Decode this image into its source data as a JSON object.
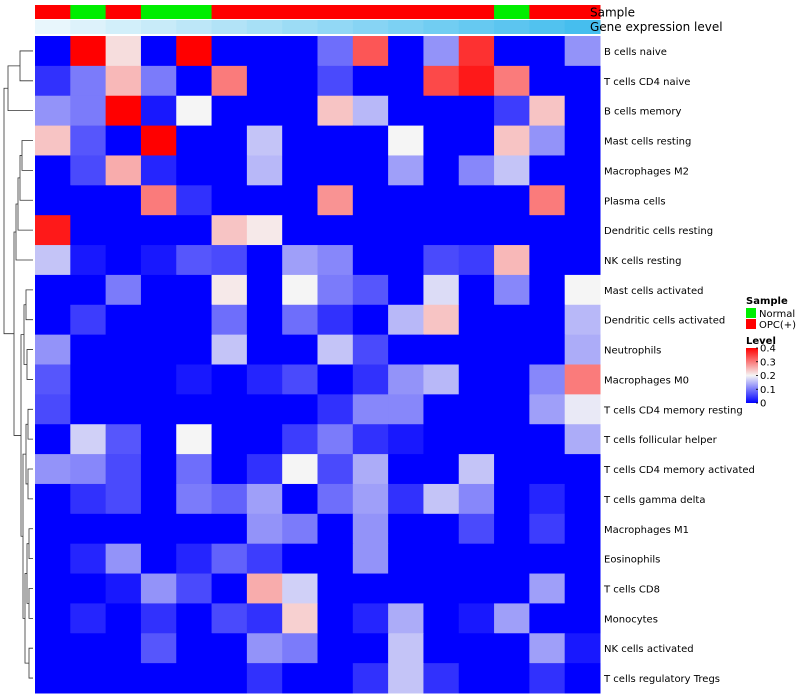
{
  "chart_data": {
    "type": "heatmap",
    "annotation_tracks": [
      {
        "title": "Sample",
        "values": [
          "OPC(+)",
          "Normal",
          "OPC(+)",
          "Normal",
          "Normal",
          "OPC(+)",
          "OPC(+)",
          "OPC(+)",
          "OPC(+)",
          "OPC(+)",
          "OPC(+)",
          "OPC(+)",
          "OPC(+)",
          "Normal",
          "OPC(+)",
          "OPC(+)"
        ]
      },
      {
        "title": "Gene expression level",
        "values": [
          0.0,
          0.067,
          0.133,
          0.2,
          0.267,
          0.333,
          0.4,
          0.467,
          0.533,
          0.6,
          0.667,
          0.733,
          0.8,
          0.867,
          0.933,
          1.0
        ]
      }
    ],
    "rows": [
      "B cells naive",
      "T cells CD4 naive",
      "B cells memory",
      "Mast cells resting",
      "Macrophages M2",
      "Plasma cells",
      "Dendritic cells resting",
      "NK cells resting",
      "Mast cells activated",
      "Dendritic cells activated",
      "Neutrophils",
      "Macrophages M0",
      "T cells CD4 memory resting",
      "T cells follicular helper",
      "T cells CD4 memory activated",
      "T cells gamma delta",
      "Macrophages M1",
      "Eosinophils",
      "T cells CD8",
      "Monocytes",
      "NK cells activated",
      "T cells regulatory  Tregs"
    ],
    "values": [
      [
        0.0,
        0.4,
        0.22,
        0.0,
        0.4,
        0.0,
        0.0,
        0.0,
        0.09,
        0.33,
        0.0,
        0.12,
        0.36,
        0.0,
        0.0,
        0.12
      ],
      [
        0.04,
        0.1,
        0.25,
        0.1,
        0.0,
        0.3,
        0.0,
        0.0,
        0.06,
        0.0,
        0.0,
        0.34,
        0.38,
        0.3,
        0.0,
        0.0
      ],
      [
        0.12,
        0.1,
        0.4,
        0.02,
        0.2,
        0.0,
        0.0,
        0.0,
        0.24,
        0.15,
        0.0,
        0.0,
        0.0,
        0.05,
        0.24,
        0.0
      ],
      [
        0.24,
        0.07,
        0.0,
        0.4,
        0.0,
        0.0,
        0.16,
        0.0,
        0.0,
        0.0,
        0.2,
        0.0,
        0.0,
        0.24,
        0.12,
        0.0
      ],
      [
        0.0,
        0.06,
        0.26,
        0.03,
        0.0,
        0.0,
        0.15,
        0.0,
        0.0,
        0.0,
        0.13,
        0.0,
        0.11,
        0.16,
        0.0,
        0.0
      ],
      [
        0.0,
        0.0,
        0.0,
        0.3,
        0.04,
        0.0,
        0.0,
        0.0,
        0.28,
        0.0,
        0.0,
        0.0,
        0.0,
        0.0,
        0.3,
        0.0
      ],
      [
        0.38,
        0.0,
        0.0,
        0.0,
        0.0,
        0.24,
        0.21,
        0.0,
        0.0,
        0.0,
        0.0,
        0.0,
        0.0,
        0.0,
        0.0,
        0.0
      ],
      [
        0.16,
        0.02,
        0.0,
        0.02,
        0.07,
        0.06,
        0.0,
        0.13,
        0.11,
        0.0,
        0.0,
        0.06,
        0.05,
        0.25,
        0.0,
        0.0
      ],
      [
        0.0,
        0.0,
        0.1,
        0.0,
        0.0,
        0.21,
        0.0,
        0.2,
        0.1,
        0.07,
        0.0,
        0.18,
        0.0,
        0.11,
        0.0,
        0.2
      ],
      [
        0.0,
        0.05,
        0.0,
        0.0,
        0.0,
        0.09,
        0.0,
        0.09,
        0.04,
        0.0,
        0.15,
        0.24,
        0.0,
        0.0,
        0.0,
        0.15
      ],
      [
        0.12,
        0.0,
        0.0,
        0.0,
        0.0,
        0.16,
        0.0,
        0.0,
        0.16,
        0.06,
        0.0,
        0.0,
        0.0,
        0.0,
        0.0,
        0.14
      ],
      [
        0.07,
        0.0,
        0.0,
        0.0,
        0.02,
        0.0,
        0.03,
        0.06,
        0.0,
        0.04,
        0.12,
        0.15,
        0.0,
        0.0,
        0.11,
        0.3
      ],
      [
        0.06,
        0.0,
        0.0,
        0.0,
        0.0,
        0.0,
        0.0,
        0.0,
        0.04,
        0.11,
        0.11,
        0.0,
        0.0,
        0.0,
        0.13,
        0.19
      ],
      [
        0.0,
        0.17,
        0.07,
        0.0,
        0.2,
        0.0,
        0.0,
        0.05,
        0.1,
        0.04,
        0.02,
        0.0,
        0.0,
        0.0,
        0.0,
        0.14
      ],
      [
        0.12,
        0.11,
        0.06,
        0.0,
        0.09,
        0.0,
        0.04,
        0.2,
        0.06,
        0.14,
        0.0,
        0.0,
        0.16,
        0.0,
        0.0,
        0.0
      ],
      [
        0.0,
        0.04,
        0.06,
        0.0,
        0.1,
        0.08,
        0.13,
        0.0,
        0.09,
        0.13,
        0.04,
        0.16,
        0.11,
        0.0,
        0.03,
        0.0
      ],
      [
        0.0,
        0.0,
        0.0,
        0.0,
        0.0,
        0.0,
        0.12,
        0.1,
        0.0,
        0.12,
        0.0,
        0.0,
        0.06,
        0.0,
        0.05,
        0.0
      ],
      [
        0.0,
        0.03,
        0.12,
        0.0,
        0.03,
        0.08,
        0.05,
        0.0,
        0.0,
        0.12,
        0.0,
        0.0,
        0.0,
        0.0,
        0.0,
        0.0
      ],
      [
        0.0,
        0.0,
        0.02,
        0.12,
        0.06,
        0.0,
        0.26,
        0.17,
        0.0,
        0.0,
        0.0,
        0.0,
        0.0,
        0.0,
        0.13,
        0.0
      ],
      [
        0.0,
        0.03,
        0.0,
        0.04,
        0.0,
        0.06,
        0.04,
        0.23,
        0.0,
        0.03,
        0.14,
        0.0,
        0.02,
        0.13,
        0.0,
        0.0
      ],
      [
        0.0,
        0.0,
        0.0,
        0.07,
        0.0,
        0.0,
        0.12,
        0.1,
        0.0,
        0.0,
        0.16,
        0.0,
        0.0,
        0.0,
        0.13,
        0.02
      ],
      [
        0.0,
        0.0,
        0.0,
        0.0,
        0.0,
        0.0,
        0.04,
        0.0,
        0.0,
        0.04,
        0.16,
        0.04,
        0.0,
        0.0,
        0.04,
        0.0
      ]
    ],
    "color_scale": {
      "min": 0,
      "mid": 0.2,
      "max": 0.4,
      "low": "#0000ff",
      "mid_color": "#f5f5f5",
      "high": "#ff0000"
    },
    "legend": {
      "sample_title": "Sample",
      "sample_entries": [
        {
          "label": "Normal",
          "color": "#00ee00"
        },
        {
          "label": "OPC(+)",
          "color": "#ff0000"
        }
      ],
      "level_title": "Level",
      "level_ticks": [
        "0.4",
        "0.3",
        "0.2",
        "0.1",
        "0"
      ],
      "level_tick_values": [
        0.4,
        0.3,
        0.2,
        0.1,
        0
      ],
      "placement": "right"
    },
    "dendrogram": "rows",
    "grid": false
  }
}
